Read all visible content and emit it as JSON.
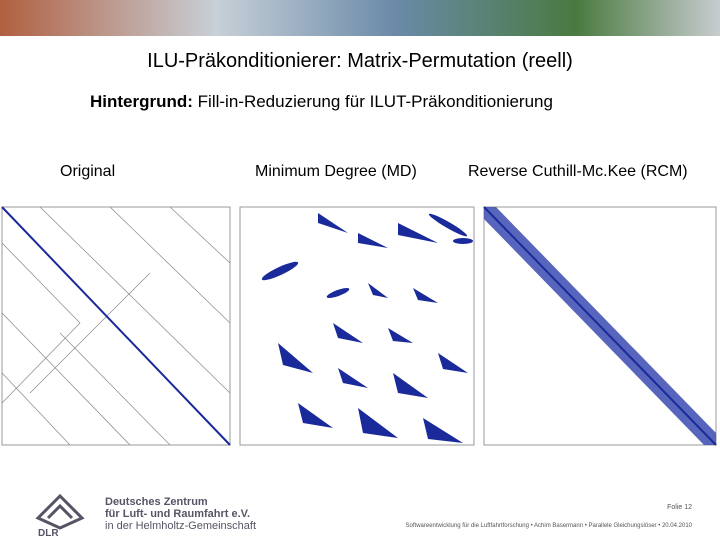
{
  "header": {
    "title": "ILU-Präkonditionierer: Matrix-Permutation (reell)",
    "subtitle": {
      "label": "Hintergrund:",
      "text": "Fill-in-Reduzierung für ILUT-Präkonditionierung"
    }
  },
  "panels": [
    {
      "label": "Original"
    },
    {
      "label": "Minimum Degree (MD)"
    },
    {
      "label": "Reverse Cuthill-Mc.Kee (RCM)"
    }
  ],
  "logo": {
    "short": "DLR",
    "lines": [
      "Deutsches Zentrum",
      "für Luft- und Raumfahrt e.V.",
      "in der Helmholtz-Gemeinschaft"
    ]
  },
  "footer": {
    "page": "Folie 12",
    "credit": "Softwareentwicklung für die Luftfahrtforschung • Achim Basermann • Parallele Gleichungslöser • 20.04.2010"
  }
}
